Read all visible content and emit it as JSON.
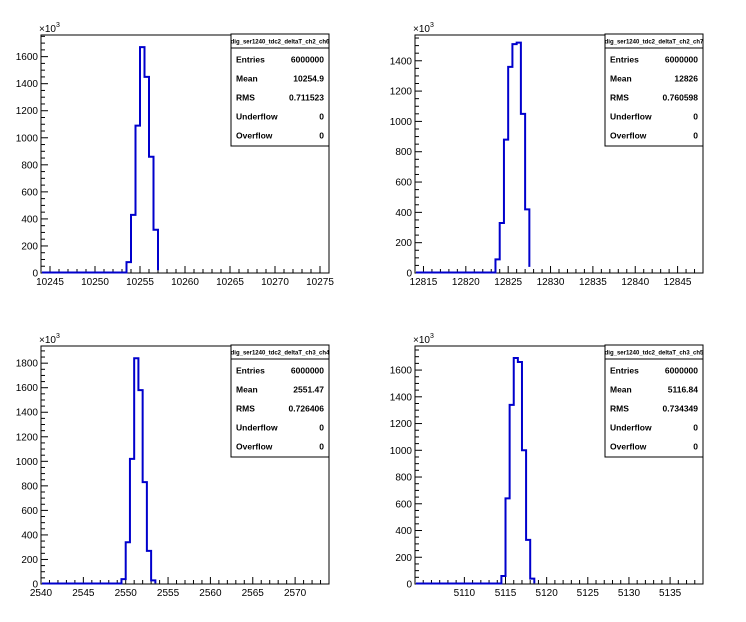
{
  "chart_data": [
    {
      "type": "histogram",
      "title": "dig_ser1240_tdc2_deltaT_ch2_ch6",
      "y_multiplier": "×10",
      "y_multiplier_exp": "3",
      "xlim": [
        10244,
        10276
      ],
      "ylim": [
        0,
        1760
      ],
      "xticks": [
        10245,
        10250,
        10255,
        10260,
        10265,
        10270,
        10275
      ],
      "yticks": [
        0,
        200,
        400,
        600,
        800,
        1000,
        1200,
        1400,
        1600
      ],
      "bins": {
        "edges": [
          10253.5,
          10254,
          10254.5,
          10255,
          10255.5,
          10256,
          10256.5,
          10257
        ],
        "counts": [
          80,
          430,
          1090,
          1670,
          1450,
          860,
          320,
          20
        ]
      },
      "stats": [
        {
          "label": "Entries",
          "value": "6000000"
        },
        {
          "label": "Mean",
          "value": "10254.9"
        },
        {
          "label": "RMS",
          "value": "0.711523"
        },
        {
          "label": "Underflow",
          "value": "0"
        },
        {
          "label": "Overflow",
          "value": "0"
        }
      ]
    },
    {
      "type": "histogram",
      "title": "dig_ser1240_tdc2_deltaT_ch2_ch7",
      "y_multiplier": "×10",
      "y_multiplier_exp": "3",
      "xlim": [
        12814,
        12848
      ],
      "ylim": [
        0,
        1570
      ],
      "xticks": [
        12815,
        12820,
        12825,
        12830,
        12835,
        12840,
        12845
      ],
      "yticks": [
        0,
        200,
        400,
        600,
        800,
        1000,
        1200,
        1400
      ],
      "bins": {
        "edges": [
          12823.5,
          12824,
          12824.5,
          12825,
          12825.5,
          12826,
          12826.5,
          12827,
          12827.5
        ],
        "counts": [
          90,
          330,
          880,
          1360,
          1510,
          1520,
          1050,
          420,
          40
        ]
      },
      "stats": [
        {
          "label": "Entries",
          "value": "6000000"
        },
        {
          "label": "Mean",
          "value": "12826"
        },
        {
          "label": "RMS",
          "value": "0.760598"
        },
        {
          "label": "Underflow",
          "value": "0"
        },
        {
          "label": "Overflow",
          "value": "0"
        }
      ]
    },
    {
      "type": "histogram",
      "title": "dig_ser1240_tdc2_deltaT_ch3_ch4",
      "y_multiplier": "×10",
      "y_multiplier_exp": "3",
      "xlim": [
        2540,
        2574
      ],
      "ylim": [
        0,
        1940
      ],
      "xticks": [
        2540,
        2545,
        2550,
        2555,
        2560,
        2565,
        2570
      ],
      "yticks": [
        0,
        200,
        400,
        600,
        800,
        1000,
        1200,
        1400,
        1600,
        1800
      ],
      "bins": {
        "edges": [
          2549.5,
          2550,
          2550.5,
          2551,
          2551.5,
          2552,
          2552.5,
          2553,
          2553.5
        ],
        "counts": [
          40,
          340,
          1020,
          1840,
          1580,
          830,
          270,
          30,
          5
        ]
      },
      "stats": [
        {
          "label": "Entries",
          "value": "6000000"
        },
        {
          "label": "Mean",
          "value": "2551.47"
        },
        {
          "label": "RMS",
          "value": "0.726406"
        },
        {
          "label": "Underflow",
          "value": "0"
        },
        {
          "label": "Overflow",
          "value": "0"
        }
      ]
    },
    {
      "type": "histogram",
      "title": "dig_ser1240_tdc2_deltaT_ch3_ch5",
      "y_multiplier": "×10",
      "y_multiplier_exp": "3",
      "xlim": [
        5104,
        5139
      ],
      "ylim": [
        0,
        1780
      ],
      "xticks": [
        5110,
        5115,
        5120,
        5125,
        5130,
        5135
      ],
      "yticks": [
        0,
        200,
        400,
        600,
        800,
        1000,
        1200,
        1400,
        1600
      ],
      "bins": {
        "edges": [
          5114.5,
          5115,
          5115.5,
          5116,
          5116.5,
          5117,
          5117.5,
          5118,
          5118.5
        ],
        "counts": [
          60,
          640,
          1340,
          1690,
          1660,
          1000,
          330,
          40,
          5
        ]
      },
      "stats": [
        {
          "label": "Entries",
          "value": "6000000"
        },
        {
          "label": "Mean",
          "value": "5116.84"
        },
        {
          "label": "RMS",
          "value": "0.734349"
        },
        {
          "label": "Underflow",
          "value": "0"
        },
        {
          "label": "Overflow",
          "value": "0"
        }
      ]
    }
  ],
  "style": {
    "line_color": "#0000cc",
    "axis_color": "#000000"
  }
}
